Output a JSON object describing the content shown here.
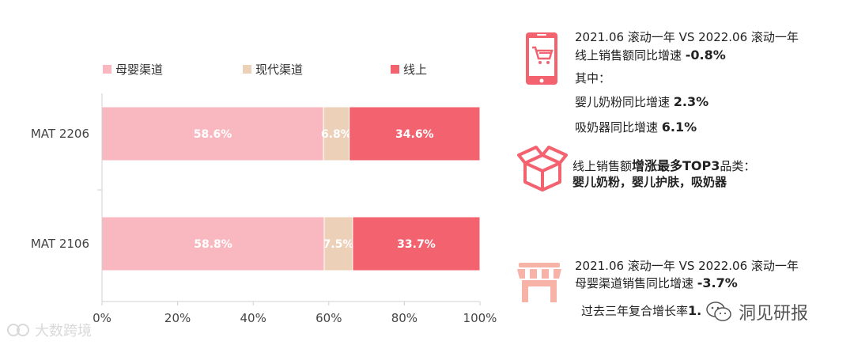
{
  "chart_data": {
    "type": "bar",
    "orientation": "horizontal",
    "stacked": true,
    "categories": [
      "MAT 2206",
      "MAT 2106"
    ],
    "series": [
      {
        "name": "母婴渠道",
        "color": "#f9b8c0",
        "values": [
          58.6,
          58.8
        ],
        "labels": [
          "58.6%",
          "58.8%"
        ]
      },
      {
        "name": "现代渠道",
        "color": "#ecd0b8",
        "values": [
          6.8,
          7.5
        ],
        "labels": [
          "6.8%",
          "7.5%"
        ]
      },
      {
        "name": "线上",
        "color": "#f2636f",
        "values": [
          34.6,
          33.7
        ],
        "labels": [
          "34.6%",
          "33.7%"
        ]
      }
    ],
    "xlim": [
      0,
      100
    ],
    "xticks": [
      "0%",
      "20%",
      "40%",
      "60%",
      "80%",
      "100%"
    ],
    "legend_position": "top",
    "grid": false
  },
  "info": {
    "online": {
      "icon": "phone-cart-icon",
      "line1": "2021.06 滚动一年 VS 2022.06 滚动一年",
      "line2_text": "线上销售额同比增速 ",
      "line2_value": "-0.8%",
      "line3": "其中：",
      "line4_text": "婴儿奶粉同比增速 ",
      "line4_value": "2.3%",
      "line5_text": "吸奶器同比增速 ",
      "line5_value": "6.1%"
    },
    "top3": {
      "icon": "open-box-icon",
      "line1_prefix": "线上销售额",
      "line1_bold": "增涨最多TOP3",
      "line1_suffix": "品类：",
      "line2": "婴儿奶粉，婴儿护肤，吸奶器"
    },
    "store": {
      "icon": "store-icon",
      "line1": "2021.06 滚动一年 VS 2022.06 滚动一年",
      "line2_text": "母婴渠道销售同比增速 ",
      "line2_value": "-3.7%",
      "line3_text": "过去三年复合增长率",
      "line3_value": "1."
    }
  },
  "watermarks": {
    "left": "大数跨境",
    "right": "洞见研报"
  },
  "colors": {
    "accent": "#f2636f",
    "axis": "#d0d0d0",
    "tick": "#444444"
  }
}
